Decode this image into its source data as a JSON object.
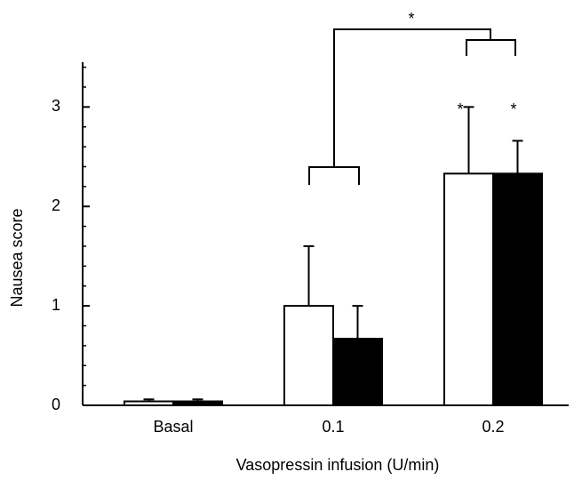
{
  "chart_data": {
    "type": "bar",
    "xlabel": "Vasopressin infusion (U/min)",
    "ylabel": "Nausea score",
    "categories": [
      "Basal",
      "0.1",
      "0.2"
    ],
    "series": [
      {
        "color": "#ffffff",
        "values": [
          0.04,
          1.0,
          2.33
        ],
        "errors": [
          0.02,
          0.6,
          0.67
        ]
      },
      {
        "color": "#000000",
        "values": [
          0.04,
          0.67,
          2.33
        ],
        "errors": [
          0.02,
          0.33,
          0.33
        ]
      }
    ],
    "ylim": [
      0,
      3.45
    ],
    "yticks": [
      0,
      1,
      2,
      3
    ],
    "yminorticks": [
      0.2,
      0.4,
      0.6,
      0.8,
      1.2,
      1.4,
      1.6,
      1.8,
      2.2,
      2.4,
      2.6,
      2.8,
      3.2,
      3.4
    ],
    "annotations": [
      "*",
      "*",
      "*"
    ]
  }
}
